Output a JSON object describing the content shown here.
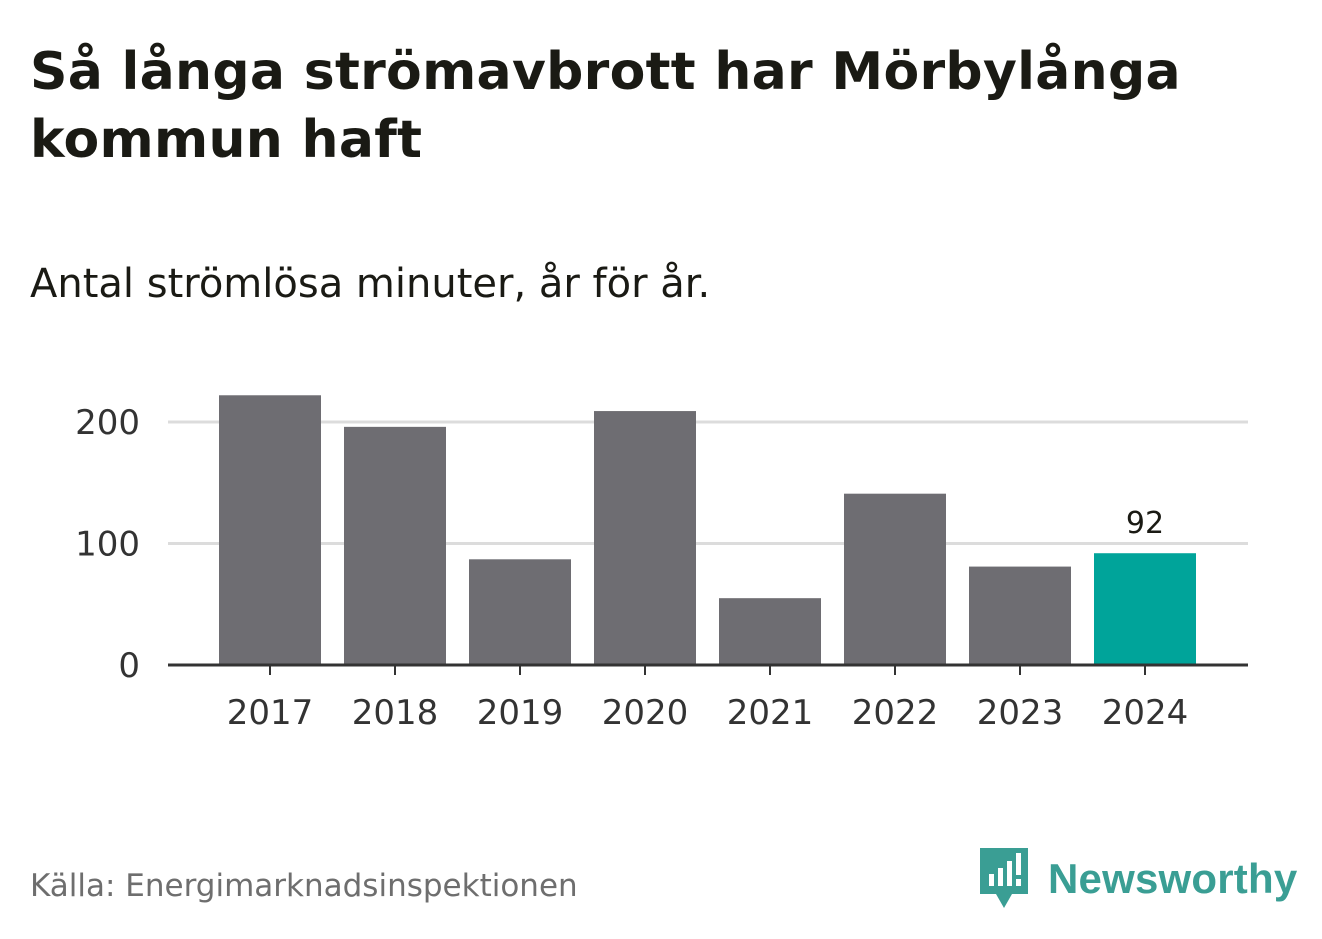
{
  "title": "Så långa strömavbrott har Mörbylånga kommun haft",
  "subtitle": "Antal strömlösa minuter, år för år.",
  "source": "Källa: Energimarknadsinspektionen",
  "brand": {
    "name": "Newsworthy",
    "icon": "newsworthy-logo-icon"
  },
  "colors": {
    "bar": "#6e6d72",
    "highlight": "#00a49a",
    "gridline": "#dcdcdc",
    "axis": "#333333",
    "brand": "#3a9e94"
  },
  "chart_data": {
    "type": "bar",
    "categories": [
      "2017",
      "2018",
      "2019",
      "2020",
      "2021",
      "2022",
      "2023",
      "2024"
    ],
    "values": [
      222,
      196,
      87,
      209,
      55,
      141,
      81,
      92
    ],
    "highlight_index": 7,
    "data_labels": [
      {
        "index": 7,
        "text": "92"
      }
    ],
    "yticks": [
      0,
      100,
      200
    ],
    "ylim": [
      0,
      230
    ],
    "grid": true,
    "title": "Så långa strömavbrott har Mörbylånga kommun haft",
    "subtitle": "Antal strömlösa minuter, år för år."
  }
}
